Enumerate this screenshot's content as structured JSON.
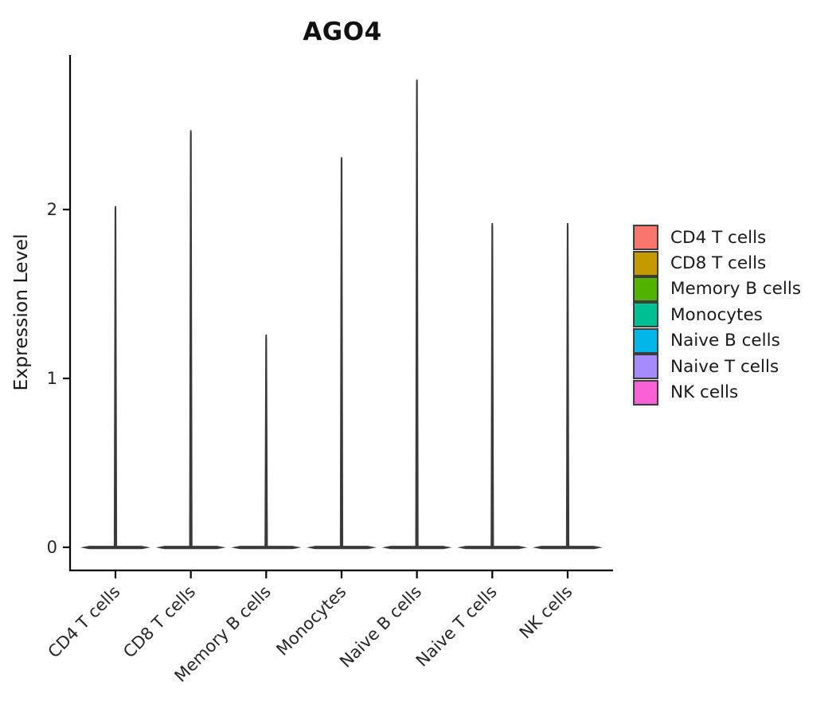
{
  "chart_data": {
    "type": "violin",
    "title": "AGO4",
    "ylabel": "Expression Level",
    "categories": [
      "CD4 T cells",
      "CD8 T cells",
      "Memory B cells",
      "Monocytes",
      "Naive B cells",
      "Naive T cells",
      "NK cells"
    ],
    "series": [
      {
        "name": "CD4 T cells",
        "color": "#F8766D",
        "max_expression": 2.02,
        "density_bulk_at": 0
      },
      {
        "name": "CD8 T cells",
        "color": "#C49A00",
        "max_expression": 2.47,
        "density_bulk_at": 0
      },
      {
        "name": "Memory B cells",
        "color": "#53B400",
        "max_expression": 1.26,
        "density_bulk_at": 0
      },
      {
        "name": "Monocytes",
        "color": "#00C094",
        "max_expression": 2.31,
        "density_bulk_at": 0
      },
      {
        "name": "Naive B cells",
        "color": "#00B6EB",
        "max_expression": 2.77,
        "density_bulk_at": 0
      },
      {
        "name": "Naive T cells",
        "color": "#A58AFF",
        "max_expression": 1.92,
        "density_bulk_at": 0
      },
      {
        "name": "NK cells",
        "color": "#FB61D7",
        "max_expression": 1.92,
        "density_bulk_at": 0
      }
    ],
    "yticks": [
      0,
      1,
      2
    ],
    "ylim": [
      -0.08,
      2.95
    ],
    "grid": false,
    "legend_position": "right",
    "violin_body_color": "#3a3a3a",
    "axis_color": "#000000",
    "tick_label_color": "#262626"
  }
}
